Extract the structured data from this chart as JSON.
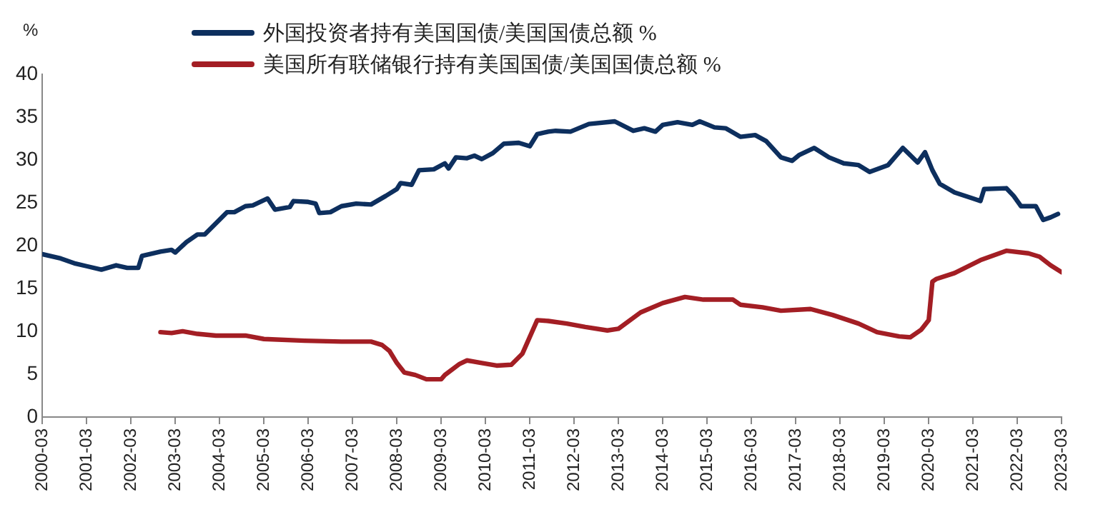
{
  "chart_data": {
    "type": "line",
    "ylabel": "%",
    "xlim": [
      "2000-03",
      "2023-03"
    ],
    "xticks": [
      "2000-03",
      "2001-03",
      "2002-03",
      "2003-03",
      "2004-03",
      "2005-03",
      "2006-03",
      "2007-03",
      "2008-03",
      "2009-03",
      "2010-03",
      "2011-03",
      "2012-03",
      "2013-03",
      "2014-03",
      "2015-03",
      "2016-03",
      "2017-03",
      "2018-03",
      "2019-03",
      "2020-03",
      "2021-03",
      "2022-03",
      "2023-03"
    ],
    "ylim": [
      0,
      40
    ],
    "yticks": [
      0,
      5,
      10,
      15,
      20,
      25,
      30,
      35,
      40
    ],
    "grid": false,
    "legend": "top",
    "marker": "none",
    "line_style": "solid",
    "series": [
      {
        "name": "外国投资者持有美国国债/美国国债总额 %",
        "color": "#0d2f5e",
        "x": [
          "2000-03",
          "2000-08",
          "2000-12",
          "2001-03",
          "2001-07",
          "2001-11",
          "2002-02",
          "2002-05",
          "2002-06",
          "2002-11",
          "2003-02",
          "2003-03",
          "2003-06",
          "2003-09",
          "2003-11",
          "2004-05",
          "2004-07",
          "2004-10",
          "2004-12",
          "2005-04",
          "2005-06",
          "2005-10",
          "2005-11",
          "2006-03",
          "2006-05",
          "2006-06",
          "2006-09",
          "2006-12",
          "2007-04",
          "2007-08",
          "2007-12",
          "2008-03",
          "2008-04",
          "2008-07",
          "2008-09",
          "2009-01",
          "2009-04",
          "2009-05",
          "2009-07",
          "2009-10",
          "2009-12",
          "2010-02",
          "2010-05",
          "2010-08",
          "2010-12",
          "2011-03",
          "2011-05",
          "2011-08",
          "2011-10",
          "2012-02",
          "2012-07",
          "2013-02",
          "2013-07",
          "2013-10",
          "2014-01",
          "2014-03",
          "2014-07",
          "2014-11",
          "2015-01",
          "2015-05",
          "2015-08",
          "2015-12",
          "2016-04",
          "2016-07",
          "2016-11",
          "2017-02",
          "2017-04",
          "2017-08",
          "2017-12",
          "2018-04",
          "2018-08",
          "2018-11",
          "2019-04",
          "2019-08",
          "2019-12",
          "2020-02",
          "2020-04",
          "2020-06",
          "2020-10",
          "2021-03",
          "2021-05",
          "2021-06",
          "2021-12",
          "2022-02",
          "2022-04",
          "2022-08",
          "2022-10",
          "2022-12",
          "2023-02"
        ],
        "values": [
          19.0,
          18.5,
          17.9,
          17.6,
          17.2,
          17.7,
          17.4,
          17.4,
          18.8,
          19.3,
          19.5,
          19.2,
          20.4,
          21.3,
          21.3,
          23.9,
          23.9,
          24.6,
          24.7,
          25.5,
          24.2,
          24.5,
          25.2,
          25.1,
          24.9,
          23.8,
          23.9,
          24.6,
          24.9,
          24.8,
          25.8,
          26.6,
          27.3,
          27.1,
          28.8,
          28.9,
          29.6,
          29.0,
          30.3,
          30.2,
          30.5,
          30.1,
          30.8,
          31.9,
          32.0,
          31.6,
          33.0,
          33.3,
          33.4,
          33.3,
          34.2,
          34.5,
          33.4,
          33.7,
          33.3,
          34.1,
          34.4,
          34.1,
          34.5,
          33.8,
          33.7,
          32.7,
          32.9,
          32.2,
          30.3,
          29.9,
          30.6,
          31.4,
          30.3,
          29.6,
          29.4,
          28.6,
          29.4,
          31.4,
          29.7,
          30.9,
          28.8,
          27.2,
          26.2,
          25.5,
          25.2,
          26.6,
          26.7,
          25.8,
          24.6,
          24.6,
          23.0,
          23.3,
          23.7
        ]
      },
      {
        "name": "美国所有联储银行持有美国国债/美国国债总额 %",
        "color": "#a31e24",
        "x": [
          "2002-11",
          "2003-02",
          "2003-05",
          "2003-09",
          "2004-02",
          "2004-10",
          "2005-03",
          "2006-02",
          "2006-12",
          "2007-08",
          "2007-11",
          "2008-01",
          "2008-03",
          "2008-05",
          "2008-08",
          "2008-11",
          "2009-03",
          "2009-04",
          "2009-08",
          "2009-10",
          "2010-02",
          "2010-06",
          "2010-10",
          "2011-01",
          "2011-05",
          "2011-08",
          "2012-01",
          "2012-06",
          "2012-12",
          "2013-03",
          "2013-09",
          "2014-03",
          "2014-09",
          "2015-02",
          "2015-10",
          "2015-12",
          "2016-06",
          "2016-11",
          "2017-07",
          "2018-01",
          "2018-08",
          "2019-01",
          "2019-07",
          "2019-10",
          "2020-01",
          "2020-03",
          "2020-04",
          "2020-05",
          "2020-10",
          "2021-05",
          "2021-12",
          "2022-06",
          "2022-09",
          "2022-12",
          "2023-03"
        ],
        "values": [
          9.9,
          9.8,
          10.0,
          9.7,
          9.5,
          9.5,
          9.1,
          8.9,
          8.8,
          8.8,
          8.4,
          7.7,
          6.3,
          5.2,
          4.9,
          4.4,
          4.4,
          4.9,
          6.2,
          6.6,
          6.3,
          6.0,
          6.1,
          7.4,
          11.3,
          11.2,
          10.9,
          10.5,
          10.1,
          10.3,
          12.2,
          13.3,
          14.0,
          13.7,
          13.7,
          13.1,
          12.8,
          12.4,
          12.6,
          11.9,
          10.9,
          9.9,
          9.4,
          9.3,
          10.2,
          11.3,
          15.8,
          16.1,
          16.8,
          18.3,
          19.4,
          19.1,
          18.7,
          17.7,
          16.9
        ]
      }
    ]
  }
}
